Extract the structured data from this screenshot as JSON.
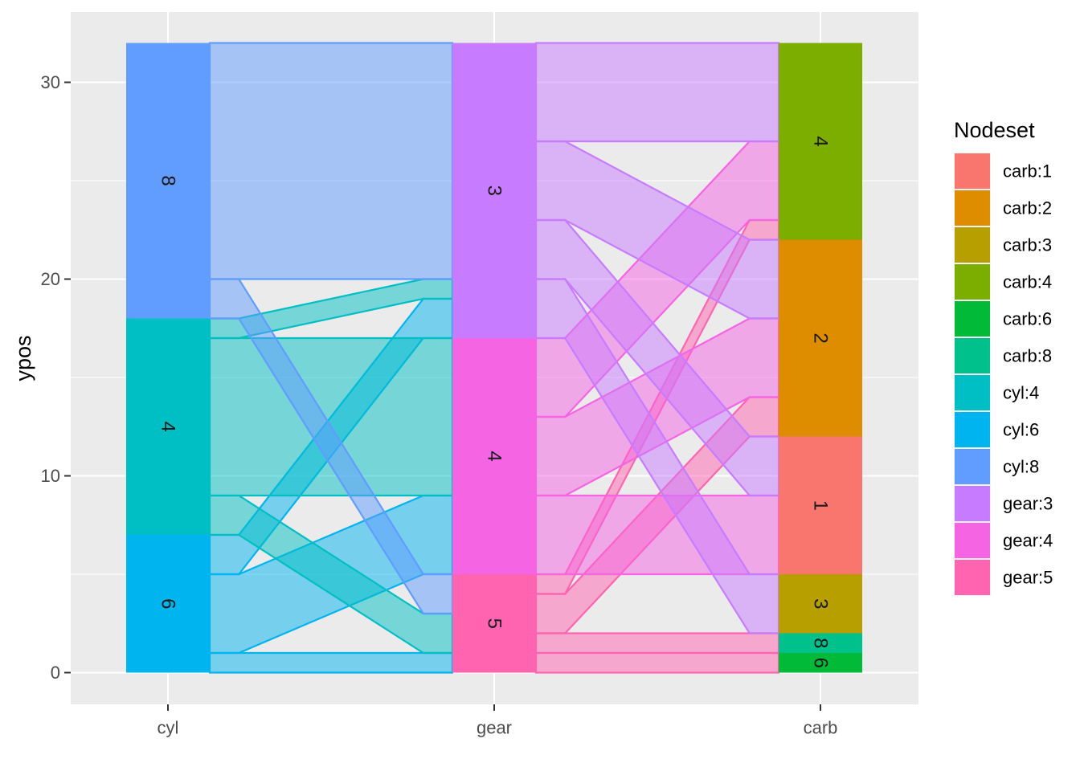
{
  "chart_data": {
    "type": "sankey",
    "xlabel": "",
    "ylabel": "ypos",
    "x_categories": [
      "cyl",
      "gear",
      "carb"
    ],
    "y_ticks": [
      0,
      10,
      20,
      30
    ],
    "ylim": [
      -1.6,
      33.5
    ],
    "grid": true,
    "legend": {
      "title": "Nodeset",
      "placement": "right",
      "entries": [
        {
          "label": "carb:1",
          "color": "#F8766D"
        },
        {
          "label": "carb:2",
          "color": "#DE8C00"
        },
        {
          "label": "carb:3",
          "color": "#B79F00"
        },
        {
          "label": "carb:4",
          "color": "#7CAE00"
        },
        {
          "label": "carb:6",
          "color": "#00BA38"
        },
        {
          "label": "carb:8",
          "color": "#00C08B"
        },
        {
          "label": "cyl:4",
          "color": "#00BFC4"
        },
        {
          "label": "cyl:6",
          "color": "#00B4F0"
        },
        {
          "label": "cyl:8",
          "color": "#619CFF"
        },
        {
          "label": "gear:3",
          "color": "#C77CFF"
        },
        {
          "label": "gear:4",
          "color": "#F564E3"
        },
        {
          "label": "gear:5",
          "color": "#FF64B0"
        }
      ]
    },
    "nodes": [
      {
        "axis": "cyl",
        "label": "6",
        "set": "cyl:6",
        "count": 7
      },
      {
        "axis": "cyl",
        "label": "4",
        "set": "cyl:4",
        "count": 11
      },
      {
        "axis": "cyl",
        "label": "8",
        "set": "cyl:8",
        "count": 14
      },
      {
        "axis": "gear",
        "label": "5",
        "set": "gear:5",
        "count": 5
      },
      {
        "axis": "gear",
        "label": "4",
        "set": "gear:4",
        "count": 12
      },
      {
        "axis": "gear",
        "label": "3",
        "set": "gear:3",
        "count": 15
      },
      {
        "axis": "carb",
        "label": "6",
        "set": "carb:6",
        "count": 1
      },
      {
        "axis": "carb",
        "label": "8",
        "set": "carb:8",
        "count": 1
      },
      {
        "axis": "carb",
        "label": "3",
        "set": "carb:3",
        "count": 3
      },
      {
        "axis": "carb",
        "label": "1",
        "set": "carb:1",
        "count": 7
      },
      {
        "axis": "carb",
        "label": "2",
        "set": "carb:2",
        "count": 10
      },
      {
        "axis": "carb",
        "label": "4",
        "set": "carb:4",
        "count": 10
      }
    ],
    "flows": [
      {
        "from": "cyl:6",
        "to": "gear:5",
        "value": 1
      },
      {
        "from": "cyl:6",
        "to": "gear:4",
        "value": 4
      },
      {
        "from": "cyl:6",
        "to": "gear:3",
        "value": 2
      },
      {
        "from": "cyl:4",
        "to": "gear:5",
        "value": 2
      },
      {
        "from": "cyl:4",
        "to": "gear:4",
        "value": 8
      },
      {
        "from": "cyl:4",
        "to": "gear:3",
        "value": 1
      },
      {
        "from": "cyl:8",
        "to": "gear:5",
        "value": 2
      },
      {
        "from": "cyl:8",
        "to": "gear:3",
        "value": 12
      },
      {
        "from": "gear:5",
        "to": "carb:6",
        "value": 1
      },
      {
        "from": "gear:5",
        "to": "carb:8",
        "value": 1
      },
      {
        "from": "gear:5",
        "to": "carb:2",
        "value": 2
      },
      {
        "from": "gear:5",
        "to": "carb:4",
        "value": 1
      },
      {
        "from": "gear:4",
        "to": "carb:1",
        "value": 4
      },
      {
        "from": "gear:4",
        "to": "carb:2",
        "value": 4
      },
      {
        "from": "gear:4",
        "to": "carb:4",
        "value": 4
      },
      {
        "from": "gear:3",
        "to": "carb:3",
        "value": 3
      },
      {
        "from": "gear:3",
        "to": "carb:1",
        "value": 3
      },
      {
        "from": "gear:3",
        "to": "carb:2",
        "value": 4
      },
      {
        "from": "gear:3",
        "to": "carb:4",
        "value": 5
      }
    ]
  }
}
